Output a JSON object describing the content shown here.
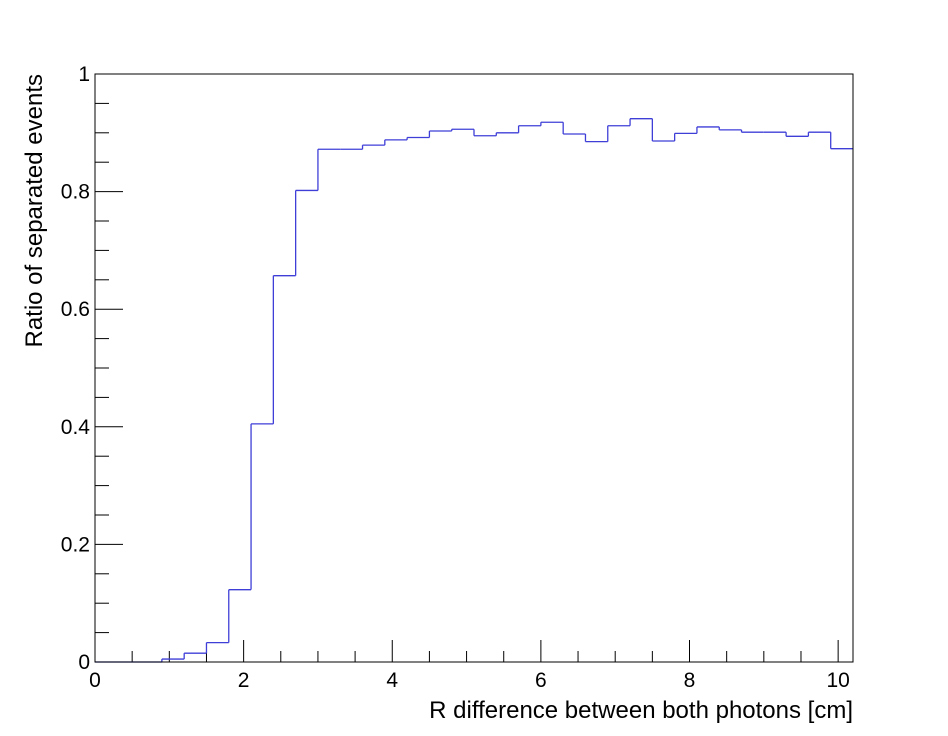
{
  "chart_data": {
    "type": "line",
    "style": "step-histogram",
    "title": "",
    "xlabel": "R difference between both photons [cm]",
    "ylabel": "Ratio of separated events",
    "xlim": [
      0,
      10.2
    ],
    "ylim": [
      0,
      1
    ],
    "x_ticks": [
      0,
      2,
      4,
      6,
      8,
      10
    ],
    "y_ticks": [
      0,
      0.2,
      0.4,
      0.6,
      0.8,
      1
    ],
    "x_tick_labels": [
      "0",
      "2",
      "4",
      "6",
      "8",
      "10"
    ],
    "y_tick_labels": [
      "0",
      "0.2",
      "0.4",
      "0.6",
      "0.8",
      "1"
    ],
    "grid": false,
    "legend": "none",
    "line_color": "#3f3fd8",
    "series": [
      {
        "bin_edges": [
          0,
          0.3,
          0.6,
          0.9,
          1.2,
          1.5,
          1.8,
          2.1,
          2.4,
          2.7,
          3.0,
          3.3,
          3.6,
          3.9,
          4.2,
          4.5,
          4.8,
          5.1,
          5.4,
          5.7,
          6.0,
          6.3,
          6.6,
          6.9,
          7.2,
          7.5,
          7.8,
          8.1,
          8.4,
          8.7,
          9.0,
          9.3,
          9.6,
          9.9,
          10.2
        ],
        "values": [
          0.0,
          0.0,
          0.0,
          0.005,
          0.015,
          0.033,
          0.123,
          0.405,
          0.657,
          0.802,
          0.872,
          0.872,
          0.879,
          0.888,
          0.892,
          0.903,
          0.906,
          0.895,
          0.9,
          0.912,
          0.918,
          0.898,
          0.885,
          0.912,
          0.924,
          0.886,
          0.899,
          0.91,
          0.905,
          0.901,
          0.901,
          0.894,
          0.901,
          0.873
        ]
      }
    ]
  }
}
